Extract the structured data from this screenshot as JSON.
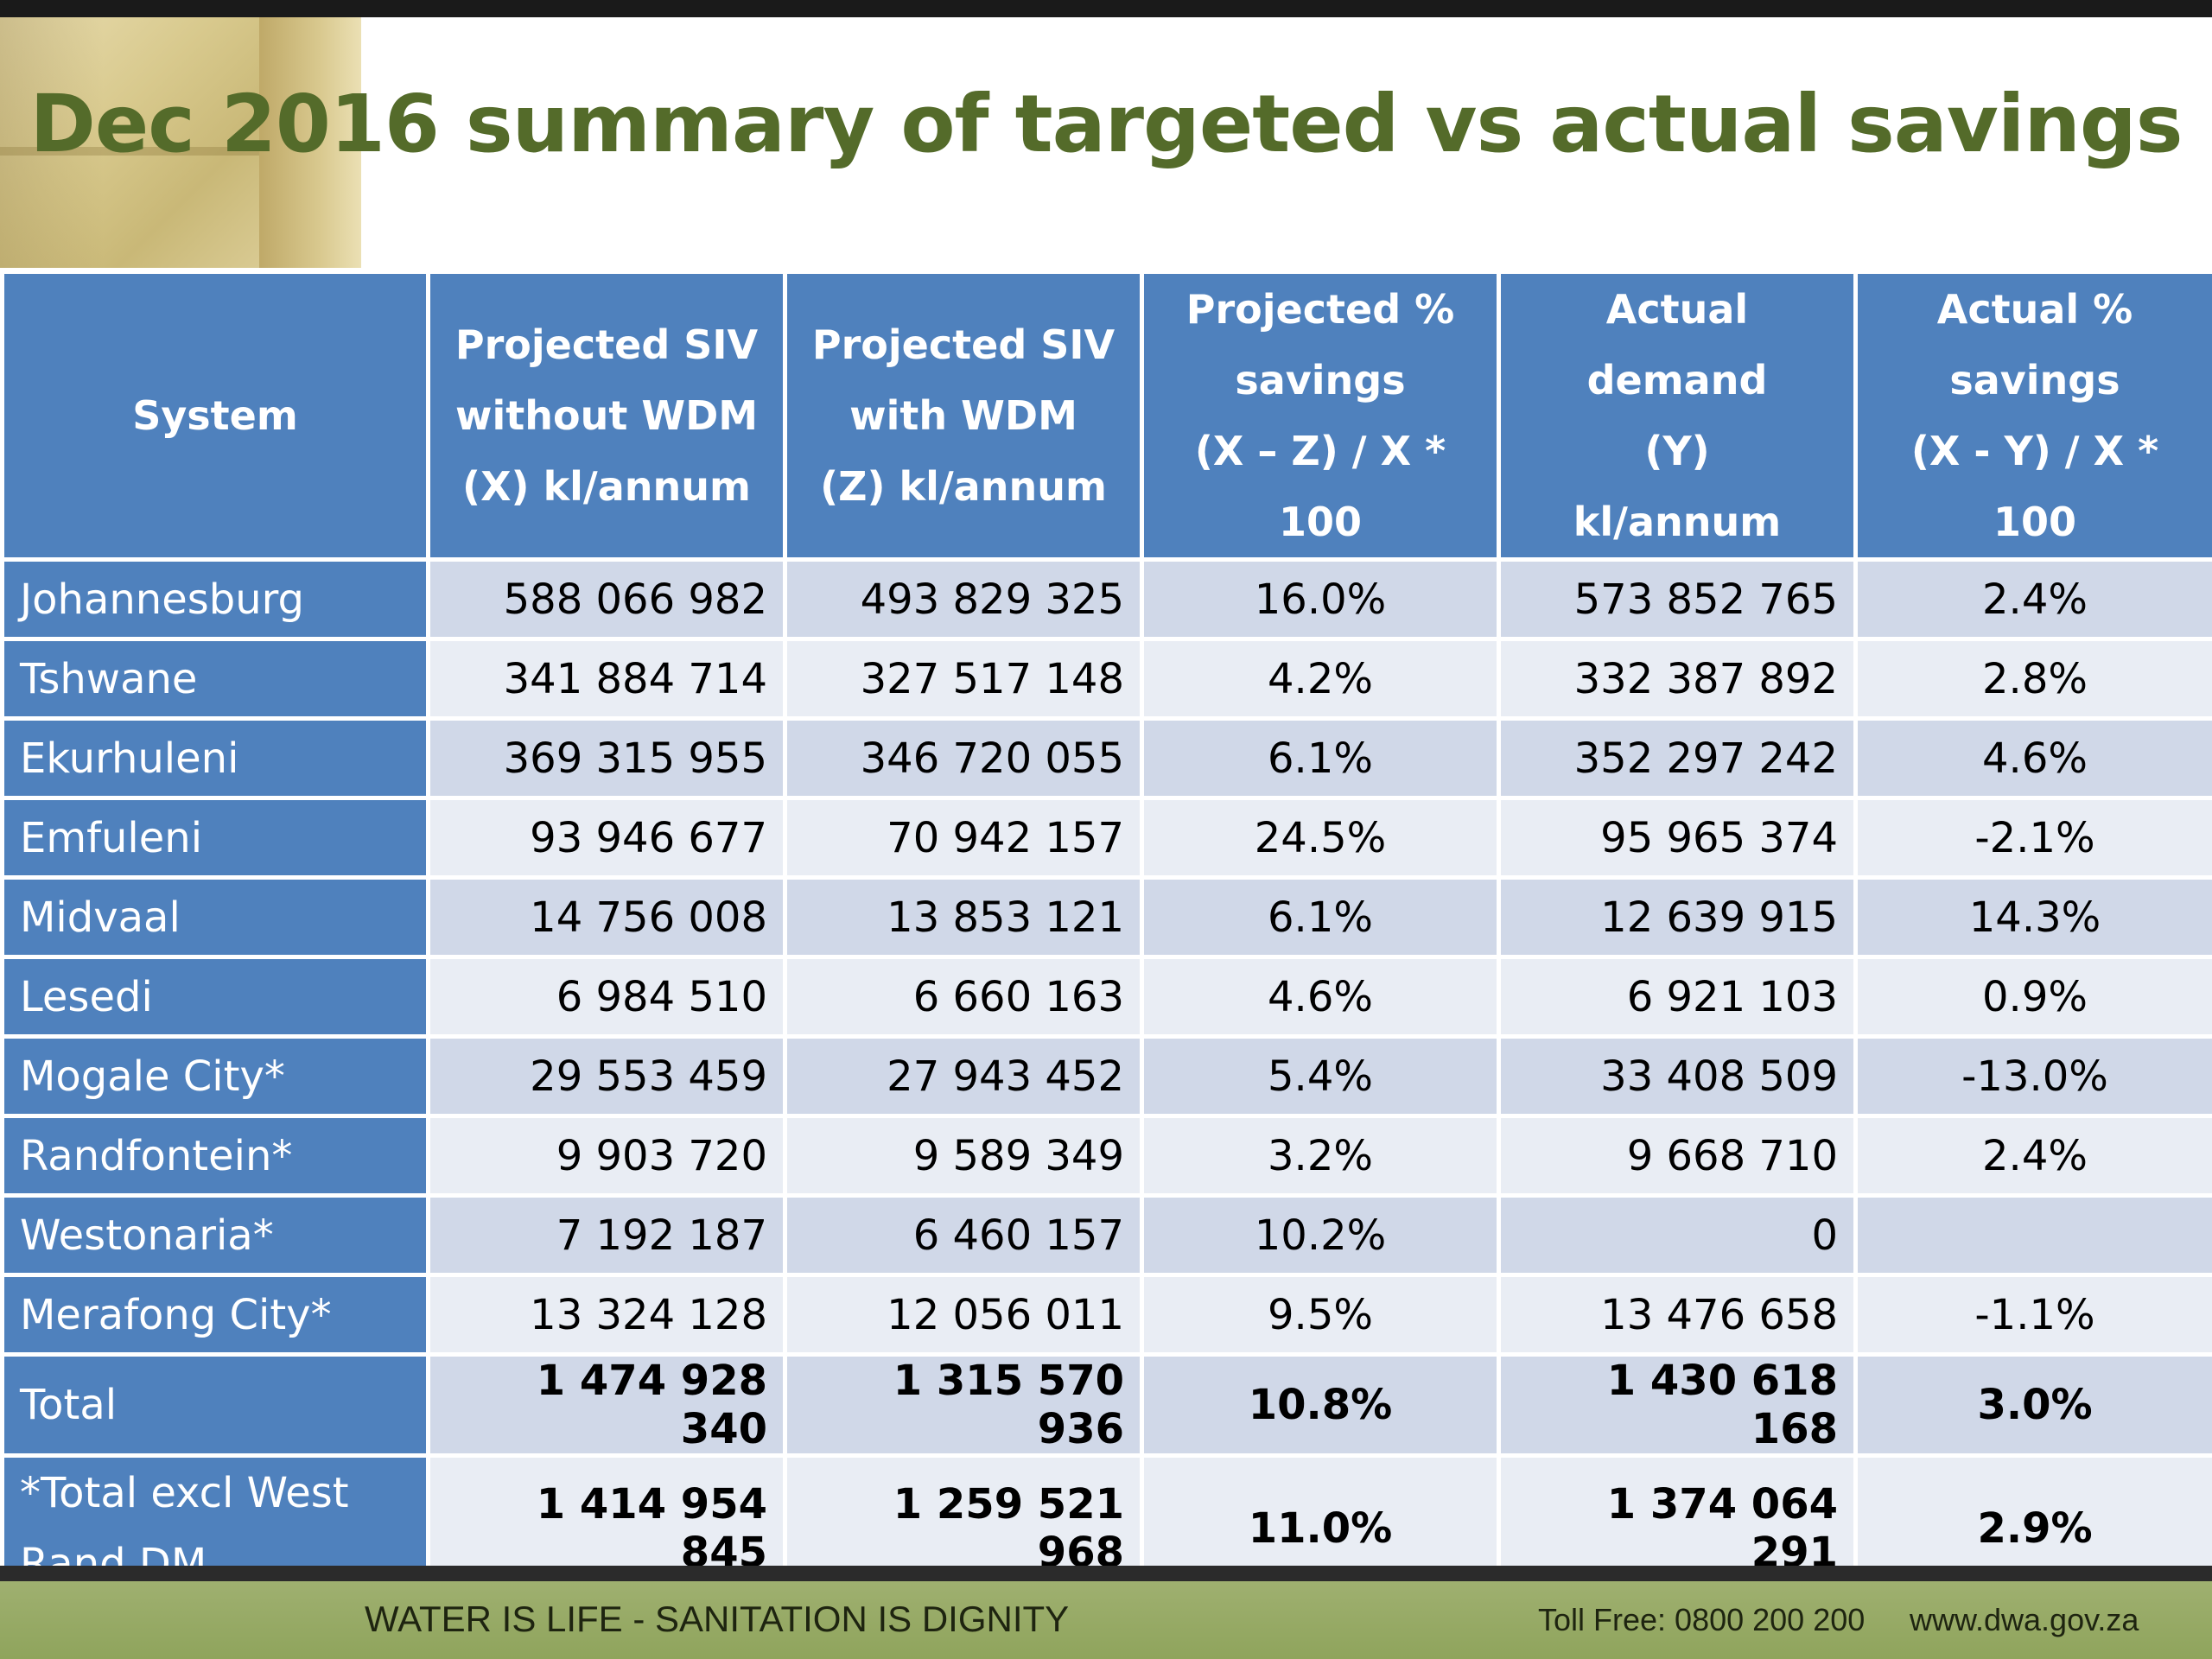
{
  "slide": {
    "title": "Dec 2016 summary of targeted vs actual savings"
  },
  "table": {
    "headers": [
      [
        "System"
      ],
      [
        "Projected SIV",
        "without WDM",
        "(X) kl/annum"
      ],
      [
        "Projected SIV",
        "with WDM",
        "(Z) kl/annum"
      ],
      [
        "Projected %",
        "savings",
        "(X – Z) / X * 100"
      ],
      [
        "Actual demand",
        "(Y)",
        "kl/annum"
      ],
      [
        "Actual %",
        "savings",
        "(X - Y) / X * 100"
      ]
    ],
    "rows": [
      {
        "system": "Johannesburg",
        "projected_without_wdm": "588 066 982",
        "projected_with_wdm": "493 829 325",
        "projected_savings_pct": "16.0%",
        "actual_demand": "573 852 765",
        "actual_savings_pct": "2.4%"
      },
      {
        "system": "Tshwane",
        "projected_without_wdm": "341 884 714",
        "projected_with_wdm": "327 517 148",
        "projected_savings_pct": "4.2%",
        "actual_demand": "332 387 892",
        "actual_savings_pct": "2.8%"
      },
      {
        "system": "Ekurhuleni",
        "projected_without_wdm": "369 315 955",
        "projected_with_wdm": "346 720 055",
        "projected_savings_pct": "6.1%",
        "actual_demand": "352 297 242",
        "actual_savings_pct": "4.6%"
      },
      {
        "system": "Emfuleni",
        "projected_without_wdm": "93 946 677",
        "projected_with_wdm": "70 942 157",
        "projected_savings_pct": "24.5%",
        "actual_demand": "95 965 374",
        "actual_savings_pct": "-2.1%"
      },
      {
        "system": "Midvaal",
        "projected_without_wdm": "14 756 008",
        "projected_with_wdm": "13 853 121",
        "projected_savings_pct": "6.1%",
        "actual_demand": "12 639 915",
        "actual_savings_pct": "14.3%"
      },
      {
        "system": "Lesedi",
        "projected_without_wdm": "6 984 510",
        "projected_with_wdm": "6 660 163",
        "projected_savings_pct": "4.6%",
        "actual_demand": "6 921 103",
        "actual_savings_pct": "0.9%"
      },
      {
        "system": "Mogale City*",
        "projected_without_wdm": "29 553 459",
        "projected_with_wdm": "27 943 452",
        "projected_savings_pct": "5.4%",
        "actual_demand": "33 408 509",
        "actual_savings_pct": "-13.0%"
      },
      {
        "system": "Randfontein*",
        "projected_without_wdm": "9 903 720",
        "projected_with_wdm": "9 589 349",
        "projected_savings_pct": "3.2%",
        "actual_demand": "9 668 710",
        "actual_savings_pct": "2.4%"
      },
      {
        "system": "Westonaria*",
        "projected_without_wdm": "7 192 187",
        "projected_with_wdm": "6 460 157",
        "projected_savings_pct": "10.2%",
        "actual_demand": "0",
        "actual_savings_pct": ""
      },
      {
        "system": "Merafong City*",
        "projected_without_wdm": "13 324 128",
        "projected_with_wdm": "12 056 011",
        "projected_savings_pct": "9.5%",
        "actual_demand": "13 476 658",
        "actual_savings_pct": "-1.1%"
      }
    ],
    "total": {
      "system": "Total",
      "projected_without_wdm": "1 474 928 340",
      "projected_with_wdm": "1 315 570 936",
      "projected_savings_pct": "10.8%",
      "actual_demand": "1 430 618 168",
      "actual_savings_pct": "3.0%"
    },
    "total_excl": {
      "system_line1": "*Total excl West",
      "system_line2": "Rand DM",
      "projected_without_wdm": "1 414 954 845",
      "projected_with_wdm": "1 259 521 968",
      "projected_savings_pct": "11.0%",
      "actual_demand": "1 374 064 291",
      "actual_savings_pct": "2.9%"
    }
  },
  "footer": {
    "slogan": "WATER IS LIFE - SANITATION IS DIGNITY",
    "toll_free": "Toll Free: 0800 200 200",
    "website": "www.dwa.gov.za"
  },
  "colors": {
    "title": "#546b2a",
    "header_fill": "#4f81bd",
    "row_band_dark": "#d0d8e8",
    "row_band_light": "#e9edf4",
    "footer_fill": "#9fb070"
  }
}
